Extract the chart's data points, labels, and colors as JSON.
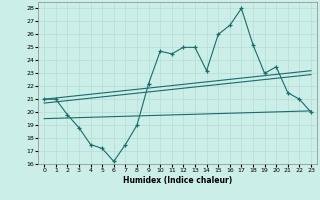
{
  "title": "",
  "xlabel": "Humidex (Indice chaleur)",
  "bg_color": "#cceee8",
  "line_color": "#1a6b6b",
  "xlim": [
    -0.5,
    23.5
  ],
  "ylim": [
    16,
    28.5
  ],
  "xticks": [
    0,
    1,
    2,
    3,
    4,
    5,
    6,
    7,
    8,
    9,
    10,
    11,
    12,
    13,
    14,
    15,
    16,
    17,
    18,
    19,
    20,
    21,
    22,
    23
  ],
  "yticks": [
    16,
    17,
    18,
    19,
    20,
    21,
    22,
    23,
    24,
    25,
    26,
    27,
    28
  ],
  "main_x": [
    0,
    1,
    2,
    3,
    4,
    5,
    6,
    7,
    8,
    9,
    10,
    11,
    12,
    13,
    14,
    15,
    16,
    17,
    18,
    19,
    20,
    21,
    22,
    23
  ],
  "main_y": [
    21.0,
    21.0,
    19.8,
    18.8,
    17.5,
    17.2,
    16.2,
    17.5,
    19.0,
    22.2,
    24.7,
    24.5,
    25.0,
    25.0,
    23.2,
    26.0,
    26.7,
    28.0,
    25.2,
    23.0,
    23.5,
    21.5,
    21.0,
    20.0
  ],
  "trend1_x": [
    0,
    23
  ],
  "trend1_y": [
    21.0,
    23.2
  ],
  "trend2_x": [
    0,
    23
  ],
  "trend2_y": [
    20.7,
    22.9
  ],
  "trend3_x": [
    0,
    23
  ],
  "trend3_y": [
    19.5,
    20.1
  ]
}
